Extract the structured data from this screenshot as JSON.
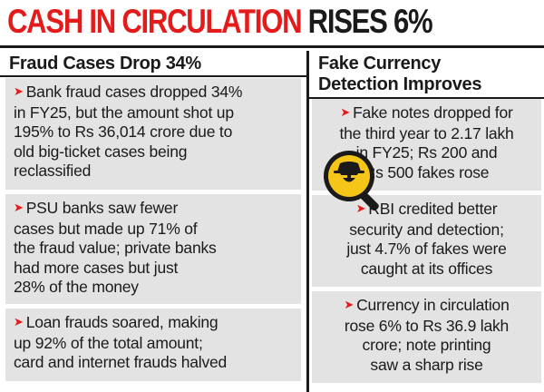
{
  "headline": {
    "part1": "CASH IN CIRCULATION",
    "part2": "RISES 6%"
  },
  "left": {
    "heading": "Fraud Cases Drop 34%",
    "items": [
      "Bank fraud cases dropped 34%\nin FY25, but the amount shot up\n195% to Rs 36,014 crore due to\nold big-ticket cases being\nreclassified",
      "PSU banks saw fewer\ncases but made up 71% of\nthe fraud value; private banks\nhad more cases but just\n28% of the money",
      "Loan frauds soared, making\nup 92% of the total amount;\ncard and internet frauds halved"
    ]
  },
  "right": {
    "heading": "Fake Currency\nDetection Improves",
    "items": [
      "Fake notes dropped for\nthe third year to 2.17 lakh\nin FY25; Rs 200 and\nRs 500 fakes rose",
      "RBI credited better\nsecurity and detection;\njust 4.7% of fakes were\ncaught at its offices",
      "Currency in circulation\nrose 6% to Rs 36.9 lakh\ncrore; note printing\nsaw a sharp rise"
    ]
  },
  "colors": {
    "accent": "#e31b1b",
    "card": "#e3e3e3",
    "icon_fill": "#f5c518",
    "text": "#1a1a1a"
  },
  "icon": "detective-magnifier-icon",
  "bullet": "➤"
}
